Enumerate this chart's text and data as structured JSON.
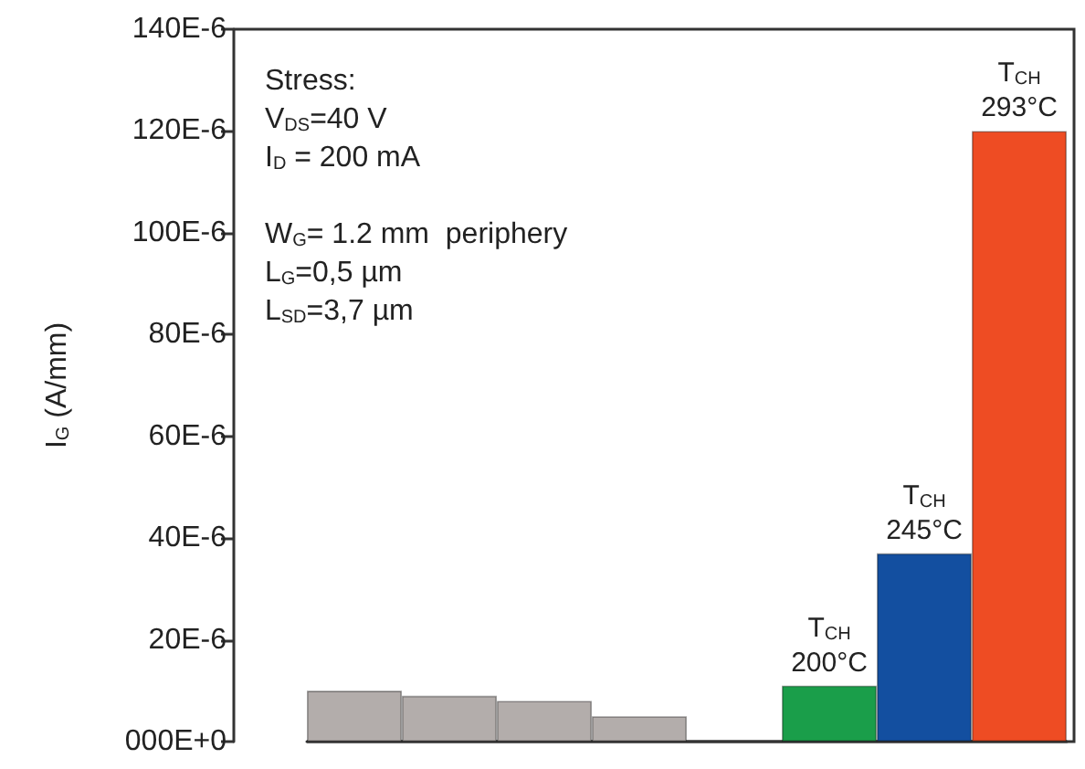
{
  "chart_data": {
    "type": "bar",
    "ylabel": "I$_{G}$ (A/mm)",
    "categories": [
      null,
      null,
      null,
      null,
      null,
      null,
      null,
      null
    ],
    "values": [
      1e-05,
      9e-06,
      8e-06,
      5e-06,
      null,
      1.1e-05,
      3.7e-05,
      0.00012
    ],
    "colors": [
      "#b3adab",
      "#b3adab",
      "#b3adab",
      "#b3adab",
      "#b3adab",
      "#1a9e4a",
      "#134fa0",
      "#ee4c23"
    ],
    "ylim": [
      0,
      0.00014
    ],
    "yticks": [
      {
        "value": 0,
        "label": "000E+0"
      },
      {
        "value": 2e-05,
        "label": "20E-6"
      },
      {
        "value": 4e-05,
        "label": "40E-6"
      },
      {
        "value": 6e-05,
        "label": "60E-6"
      },
      {
        "value": 8e-05,
        "label": "80E-6"
      },
      {
        "value": 0.0001,
        "label": "100E-6"
      },
      {
        "value": 0.00012,
        "label": "120E-6"
      },
      {
        "value": 0.00014,
        "label": "140E-6"
      }
    ],
    "annotations": [
      "Stress:\nV$_{DS}$=40 V\nI$_{D}$ = 200 mA\n\nW$_{G}$= 1.2 mm  periphery\nL$_{G}$=0,5 µm\nL$_{SD}$=3,7 µm",
      {
        "text": "T$_{CH}$\n200°C",
        "y": 1.1e-05
      },
      {
        "text": "T$_{CH}$\n245°C",
        "y": 3.7e-05
      },
      {
        "text": "T$_{CH}$\n293°C",
        "y": 0.00012
      }
    ],
    "tick_labels": "y",
    "grid": false
  }
}
